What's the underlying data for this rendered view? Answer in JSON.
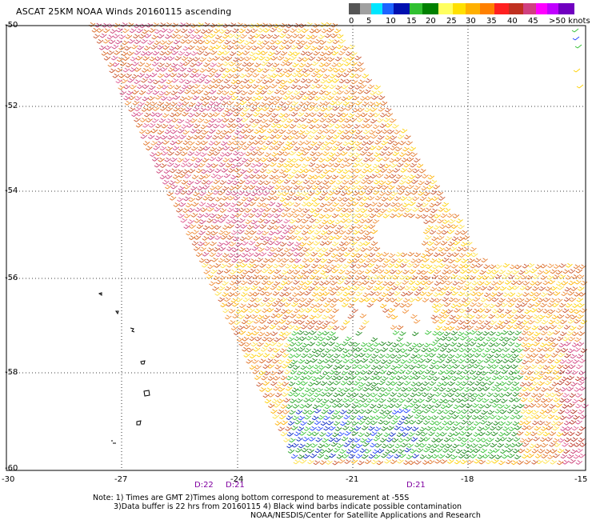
{
  "title": "ASCAT 25KM NOAA Winds 20160115 ascending",
  "legend": {
    "labels": [
      "0",
      "5",
      "10",
      "15",
      "20",
      "25",
      "30",
      "35",
      "40",
      "45",
      ">50 knots"
    ],
    "colors": [
      "#555555",
      "#a0a0a0",
      "#00e6ff",
      "#1e64ff",
      "#0010b0",
      "#30c030",
      "#008000",
      "#ffff60",
      "#ffe000",
      "#ffb000",
      "#ff8000",
      "#ff2020",
      "#c03020",
      "#d04080",
      "#ff00ff",
      "#c000ff",
      "#7000c0"
    ]
  },
  "axes": {
    "lat_labels": [
      "-50",
      "-52",
      "-54",
      "-56",
      "-58",
      "-60"
    ],
    "lon_labels": [
      "-30",
      "-27",
      "-24",
      "-21",
      "-18",
      "-15"
    ]
  },
  "time_labels": [
    "D:22",
    "D:21",
    "D:21"
  ],
  "footnote": {
    "line1": "Note: 1) Times are GMT 2)Times along bottom correspond to measurement at -55S",
    "line2": "3)Data buffer is 22 hrs from 20160115 4) Black wind barbs indicate possible contamination",
    "line3": "NOAA/NESDIS/Center for Satellite Applications and Research"
  }
}
